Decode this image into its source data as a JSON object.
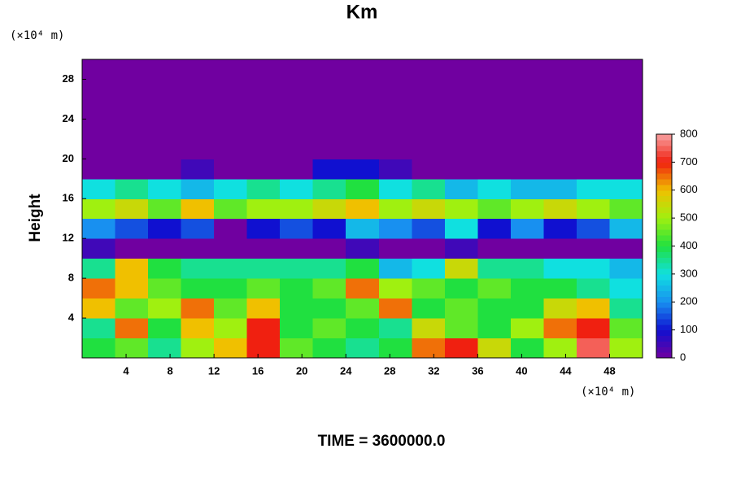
{
  "chart_data": {
    "type": "heatmap",
    "title": "Km",
    "y_unit": "(×10⁴ m)",
    "x_unit": "(×10⁴ m)",
    "y_label": "Height",
    "footer": "TIME = 3600000.0",
    "xlim": [
      0,
      51
    ],
    "ylim": [
      0,
      30
    ],
    "xticks": [
      4,
      8,
      12,
      16,
      20,
      24,
      28,
      32,
      36,
      40,
      44,
      48
    ],
    "yticks": [
      4,
      8,
      12,
      16,
      20,
      24,
      28
    ],
    "z": [
      [
        400,
        450,
        350,
        500,
        600,
        700,
        450,
        400,
        350,
        400,
        650,
        700,
        550,
        400,
        500,
        750,
        500
      ],
      [
        350,
        650,
        400,
        600,
        500,
        700,
        400,
        450,
        400,
        350,
        550,
        450,
        400,
        500,
        650,
        700,
        450
      ],
      [
        600,
        450,
        500,
        650,
        450,
        600,
        400,
        400,
        450,
        650,
        400,
        450,
        400,
        400,
        550,
        600,
        350
      ],
      [
        650,
        600,
        450,
        400,
        400,
        450,
        400,
        450,
        650,
        500,
        450,
        400,
        450,
        400,
        400,
        350,
        300
      ],
      [
        350,
        600,
        400,
        350,
        350,
        350,
        350,
        350,
        400,
        250,
        300,
        550,
        350,
        350,
        300,
        300,
        250
      ],
      [
        50,
        0,
        0,
        0,
        0,
        0,
        0,
        0,
        50,
        0,
        0,
        50,
        0,
        0,
        0,
        0,
        0
      ],
      [
        200,
        150,
        100,
        150,
        0,
        100,
        150,
        100,
        250,
        200,
        150,
        300,
        100,
        200,
        100,
        150,
        250
      ],
      [
        500,
        550,
        450,
        600,
        450,
        500,
        500,
        550,
        600,
        500,
        550,
        500,
        450,
        500,
        550,
        500,
        450
      ],
      [
        300,
        350,
        300,
        250,
        300,
        350,
        300,
        350,
        400,
        300,
        350,
        250,
        300,
        250,
        250,
        300,
        300
      ],
      [
        0,
        0,
        0,
        50,
        0,
        0,
        0,
        100,
        100,
        50,
        0,
        0,
        0,
        0,
        0,
        0,
        0
      ],
      [
        0,
        0,
        0,
        0,
        0,
        0,
        0,
        0,
        0,
        0,
        0,
        0,
        0,
        0,
        0,
        0,
        0
      ],
      [
        0,
        0,
        0,
        0,
        0,
        0,
        0,
        0,
        0,
        0,
        0,
        0,
        0,
        0,
        0,
        0,
        0
      ],
      [
        0,
        0,
        0,
        0,
        0,
        0,
        0,
        0,
        0,
        0,
        0,
        0,
        0,
        0,
        0,
        0,
        0
      ],
      [
        0,
        0,
        0,
        0,
        0,
        0,
        0,
        0,
        0,
        0,
        0,
        0,
        0,
        0,
        0,
        0,
        0
      ],
      [
        0,
        0,
        0,
        0,
        0,
        0,
        0,
        0,
        0,
        0,
        0,
        0,
        0,
        0,
        0,
        0,
        0
      ]
    ],
    "colorbar": {
      "ticks": [
        0,
        100,
        200,
        300,
        400,
        500,
        600,
        700,
        800
      ],
      "colors": [
        "#7000a0",
        "#1010d0",
        "#1890f0",
        "#10e0e0",
        "#20e040",
        "#a0f010",
        "#f0c000",
        "#f02010",
        "#f8a0a0"
      ]
    }
  }
}
